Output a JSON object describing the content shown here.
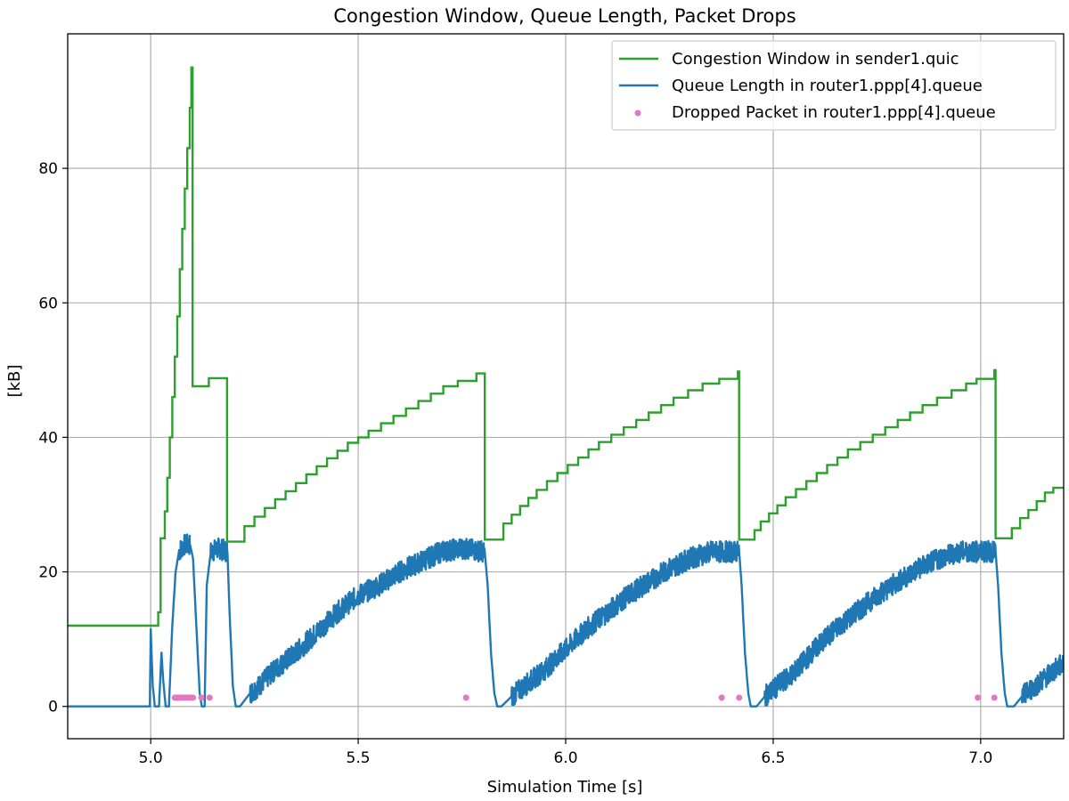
{
  "chart_data": {
    "type": "line",
    "title": "Congestion Window, Queue Length, Packet Drops",
    "xlabel": "Simulation Time [s]",
    "ylabel": "[kB]",
    "xlim": [
      4.8,
      7.2
    ],
    "ylim": [
      -4.8,
      100
    ],
    "xticks": [
      5.0,
      5.5,
      6.0,
      6.5,
      7.0
    ],
    "xtick_labels": [
      "5.0",
      "5.5",
      "6.0",
      "6.5",
      "7.0"
    ],
    "yticks": [
      0,
      20,
      40,
      60,
      80
    ],
    "ytick_labels": [
      "0",
      "20",
      "40",
      "60",
      "80"
    ],
    "grid": true,
    "legend_position": "top-right",
    "series": [
      {
        "name": "Congestion Window in sender1.quic",
        "kind": "step-line",
        "color": "#2ca02c",
        "points": [
          [
            4.8,
            12.0
          ],
          [
            5.018,
            12.0
          ],
          [
            5.018,
            14.0
          ],
          [
            5.024,
            14.0
          ],
          [
            5.024,
            25.0
          ],
          [
            5.034,
            25.0
          ],
          [
            5.034,
            29.0
          ],
          [
            5.04,
            29.0
          ],
          [
            5.04,
            34.0
          ],
          [
            5.046,
            34.0
          ],
          [
            5.046,
            40.0
          ],
          [
            5.052,
            40.0
          ],
          [
            5.052,
            46.0
          ],
          [
            5.058,
            46.0
          ],
          [
            5.058,
            52.0
          ],
          [
            5.064,
            52.0
          ],
          [
            5.064,
            58.0
          ],
          [
            5.07,
            58.0
          ],
          [
            5.07,
            65.0
          ],
          [
            5.076,
            65.0
          ],
          [
            5.076,
            71.0
          ],
          [
            5.082,
            71.0
          ],
          [
            5.082,
            77.0
          ],
          [
            5.088,
            77.0
          ],
          [
            5.088,
            83.0
          ],
          [
            5.094,
            83.0
          ],
          [
            5.094,
            89.0
          ],
          [
            5.098,
            89.0
          ],
          [
            5.098,
            95.0
          ],
          [
            5.101,
            95.0
          ],
          [
            5.101,
            47.6
          ],
          [
            5.14,
            47.6
          ],
          [
            5.14,
            48.8
          ],
          [
            5.184,
            48.8
          ],
          [
            5.184,
            24.5
          ],
          [
            5.226,
            24.5
          ],
          [
            5.226,
            26.8
          ],
          [
            5.25,
            26.8
          ],
          [
            5.25,
            28.2
          ],
          [
            5.275,
            28.2
          ],
          [
            5.275,
            29.5
          ],
          [
            5.3,
            29.5
          ],
          [
            5.3,
            30.8
          ],
          [
            5.325,
            30.8
          ],
          [
            5.325,
            32.0
          ],
          [
            5.35,
            32.0
          ],
          [
            5.35,
            33.2
          ],
          [
            5.375,
            33.2
          ],
          [
            5.375,
            34.5
          ],
          [
            5.4,
            34.5
          ],
          [
            5.4,
            35.7
          ],
          [
            5.425,
            35.7
          ],
          [
            5.425,
            36.9
          ],
          [
            5.45,
            36.9
          ],
          [
            5.45,
            38.0
          ],
          [
            5.475,
            38.0
          ],
          [
            5.475,
            39.2
          ],
          [
            5.5,
            39.2
          ],
          [
            5.5,
            40.0
          ],
          [
            5.525,
            40.0
          ],
          [
            5.525,
            41.0
          ],
          [
            5.555,
            41.0
          ],
          [
            5.555,
            42.1
          ],
          [
            5.585,
            42.1
          ],
          [
            5.585,
            43.2
          ],
          [
            5.615,
            43.2
          ],
          [
            5.615,
            44.3
          ],
          [
            5.645,
            44.3
          ],
          [
            5.645,
            45.4
          ],
          [
            5.675,
            45.4
          ],
          [
            5.675,
            46.5
          ],
          [
            5.705,
            46.5
          ],
          [
            5.705,
            47.6
          ],
          [
            5.74,
            47.6
          ],
          [
            5.74,
            48.4
          ],
          [
            5.785,
            48.4
          ],
          [
            5.785,
            49.5
          ],
          [
            5.805,
            49.5
          ],
          [
            5.805,
            24.8
          ],
          [
            5.85,
            24.8
          ],
          [
            5.85,
            27.2
          ],
          [
            5.87,
            27.2
          ],
          [
            5.87,
            28.5
          ],
          [
            5.89,
            28.5
          ],
          [
            5.89,
            29.8
          ],
          [
            5.91,
            29.8
          ],
          [
            5.91,
            31.0
          ],
          [
            5.93,
            31.0
          ],
          [
            5.93,
            32.2
          ],
          [
            5.955,
            32.2
          ],
          [
            5.955,
            33.5
          ],
          [
            5.98,
            33.5
          ],
          [
            5.98,
            34.7
          ],
          [
            6.005,
            34.7
          ],
          [
            6.005,
            35.9
          ],
          [
            6.03,
            35.9
          ],
          [
            6.03,
            37.0
          ],
          [
            6.055,
            37.0
          ],
          [
            6.055,
            38.2
          ],
          [
            6.08,
            38.2
          ],
          [
            6.08,
            39.3
          ],
          [
            6.11,
            39.3
          ],
          [
            6.11,
            40.4
          ],
          [
            6.14,
            40.4
          ],
          [
            6.14,
            41.5
          ],
          [
            6.17,
            41.5
          ],
          [
            6.17,
            42.6
          ],
          [
            6.2,
            42.6
          ],
          [
            6.2,
            43.7
          ],
          [
            6.23,
            43.7
          ],
          [
            6.23,
            44.8
          ],
          [
            6.26,
            44.8
          ],
          [
            6.26,
            45.9
          ],
          [
            6.295,
            45.9
          ],
          [
            6.295,
            47.0
          ],
          [
            6.33,
            47.0
          ],
          [
            6.33,
            48.0
          ],
          [
            6.37,
            48.0
          ],
          [
            6.37,
            48.7
          ],
          [
            6.415,
            48.7
          ],
          [
            6.415,
            49.8
          ],
          [
            6.418,
            49.8
          ],
          [
            6.418,
            24.8
          ],
          [
            6.455,
            24.8
          ],
          [
            6.455,
            26.2
          ],
          [
            6.47,
            26.2
          ],
          [
            6.47,
            27.5
          ],
          [
            6.49,
            27.5
          ],
          [
            6.49,
            28.7
          ],
          [
            6.51,
            28.7
          ],
          [
            6.51,
            29.9
          ],
          [
            6.53,
            29.9
          ],
          [
            6.53,
            31.1
          ],
          [
            6.555,
            31.1
          ],
          [
            6.555,
            32.3
          ],
          [
            6.58,
            32.3
          ],
          [
            6.58,
            33.5
          ],
          [
            6.605,
            33.5
          ],
          [
            6.605,
            34.7
          ],
          [
            6.63,
            34.7
          ],
          [
            6.63,
            35.9
          ],
          [
            6.655,
            35.9
          ],
          [
            6.655,
            37.0
          ],
          [
            6.68,
            37.0
          ],
          [
            6.68,
            38.2
          ],
          [
            6.71,
            38.2
          ],
          [
            6.71,
            39.3
          ],
          [
            6.74,
            39.3
          ],
          [
            6.74,
            40.4
          ],
          [
            6.77,
            40.4
          ],
          [
            6.77,
            41.5
          ],
          [
            6.8,
            41.5
          ],
          [
            6.8,
            42.6
          ],
          [
            6.83,
            42.6
          ],
          [
            6.83,
            43.7
          ],
          [
            6.86,
            43.7
          ],
          [
            6.86,
            44.8
          ],
          [
            6.895,
            44.8
          ],
          [
            6.895,
            45.9
          ],
          [
            6.93,
            45.9
          ],
          [
            6.93,
            47.0
          ],
          [
            6.965,
            47.0
          ],
          [
            6.965,
            48.0
          ],
          [
            6.99,
            48.0
          ],
          [
            6.99,
            48.7
          ],
          [
            7.033,
            48.7
          ],
          [
            7.033,
            50.0
          ],
          [
            7.036,
            50.0
          ],
          [
            7.036,
            25.0
          ],
          [
            7.075,
            25.0
          ],
          [
            7.075,
            26.5
          ],
          [
            7.095,
            26.5
          ],
          [
            7.095,
            28.0
          ],
          [
            7.115,
            28.0
          ],
          [
            7.115,
            29.2
          ],
          [
            7.135,
            29.2
          ],
          [
            7.135,
            30.5
          ],
          [
            7.155,
            30.5
          ],
          [
            7.155,
            31.8
          ],
          [
            7.175,
            31.8
          ],
          [
            7.175,
            32.5
          ],
          [
            7.2,
            32.5
          ]
        ]
      },
      {
        "name": "Queue Length in router1.ppp[4].queue",
        "kind": "noisy-line",
        "color": "#1f77b4",
        "points": [
          [
            4.8,
            0.0
          ],
          [
            4.998,
            0.0
          ],
          [
            5.0,
            11.5
          ],
          [
            5.005,
            3.0
          ],
          [
            5.01,
            0.0
          ],
          [
            5.02,
            0.0
          ],
          [
            5.026,
            8.0
          ],
          [
            5.03,
            4.0
          ],
          [
            5.036,
            0.0
          ],
          [
            5.044,
            0.0
          ],
          [
            5.052,
            12.0
          ],
          [
            5.06,
            20.0
          ],
          [
            5.068,
            23.0
          ],
          [
            5.08,
            24.0
          ],
          [
            5.095,
            24.0
          ],
          [
            5.102,
            22.0
          ],
          [
            5.11,
            12.0
          ],
          [
            5.118,
            2.0
          ],
          [
            5.123,
            0.0
          ],
          [
            5.13,
            0.0
          ],
          [
            5.135,
            18.0
          ],
          [
            5.145,
            23.0
          ],
          [
            5.165,
            23.5
          ],
          [
            5.185,
            23.0
          ],
          [
            5.19,
            14.0
          ],
          [
            5.198,
            3.0
          ],
          [
            5.205,
            0.0
          ],
          [
            5.215,
            0.0
          ],
          [
            5.24,
            2.0
          ],
          [
            5.26,
            3.0
          ],
          [
            5.3,
            5.5
          ],
          [
            5.35,
            8.0
          ],
          [
            5.4,
            11.0
          ],
          [
            5.45,
            14.0
          ],
          [
            5.5,
            16.5
          ],
          [
            5.55,
            18.0
          ],
          [
            5.6,
            20.0
          ],
          [
            5.65,
            21.5
          ],
          [
            5.7,
            23.0
          ],
          [
            5.75,
            23.5
          ],
          [
            5.805,
            23.0
          ],
          [
            5.812,
            18.0
          ],
          [
            5.82,
            8.0
          ],
          [
            5.828,
            2.0
          ],
          [
            5.835,
            0.0
          ],
          [
            5.845,
            0.0
          ],
          [
            5.87,
            1.5
          ],
          [
            5.9,
            3.0
          ],
          [
            5.95,
            5.5
          ],
          [
            6.0,
            8.5
          ],
          [
            6.05,
            11.5
          ],
          [
            6.1,
            14.0
          ],
          [
            6.15,
            16.5
          ],
          [
            6.2,
            18.5
          ],
          [
            6.25,
            20.5
          ],
          [
            6.3,
            22.0
          ],
          [
            6.35,
            23.0
          ],
          [
            6.418,
            23.0
          ],
          [
            6.424,
            18.0
          ],
          [
            6.432,
            8.0
          ],
          [
            6.44,
            2.0
          ],
          [
            6.446,
            0.0
          ],
          [
            6.46,
            0.0
          ],
          [
            6.48,
            1.5
          ],
          [
            6.5,
            2.5
          ],
          [
            6.55,
            5.0
          ],
          [
            6.6,
            8.5
          ],
          [
            6.65,
            11.5
          ],
          [
            6.7,
            14.0
          ],
          [
            6.75,
            16.5
          ],
          [
            6.8,
            18.5
          ],
          [
            6.85,
            20.5
          ],
          [
            6.9,
            22.0
          ],
          [
            6.95,
            23.0
          ],
          [
            7.036,
            23.0
          ],
          [
            7.042,
            18.0
          ],
          [
            7.05,
            8.0
          ],
          [
            7.058,
            2.0
          ],
          [
            7.064,
            0.0
          ],
          [
            7.08,
            0.0
          ],
          [
            7.1,
            1.5
          ],
          [
            7.13,
            3.0
          ],
          [
            7.16,
            4.5
          ],
          [
            7.2,
            6.5
          ]
        ]
      },
      {
        "name": "Dropped Packet in router1.ppp[4].queue",
        "kind": "markers",
        "color": "#e377c2",
        "points": [
          [
            5.058,
            1.3
          ],
          [
            5.062,
            1.3
          ],
          [
            5.066,
            1.3
          ],
          [
            5.07,
            1.3
          ],
          [
            5.074,
            1.3
          ],
          [
            5.078,
            1.3
          ],
          [
            5.082,
            1.3
          ],
          [
            5.086,
            1.3
          ],
          [
            5.09,
            1.3
          ],
          [
            5.094,
            1.3
          ],
          [
            5.098,
            1.3
          ],
          [
            5.102,
            1.3
          ],
          [
            5.122,
            1.3
          ],
          [
            5.142,
            1.3
          ],
          [
            5.76,
            1.3
          ],
          [
            6.376,
            1.3
          ],
          [
            6.418,
            1.3
          ],
          [
            6.993,
            1.3
          ],
          [
            7.033,
            1.3
          ]
        ]
      }
    ]
  }
}
